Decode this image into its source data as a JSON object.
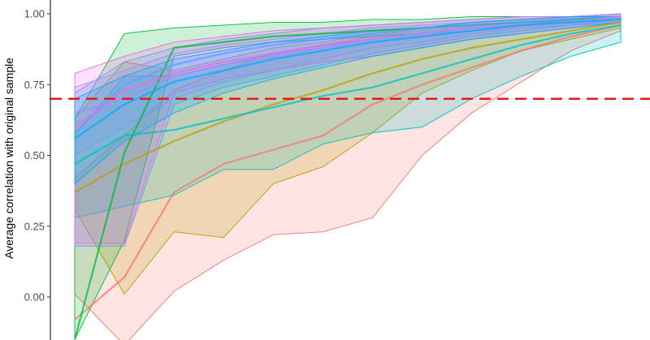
{
  "chart_data": {
    "type": "line",
    "xlabel": "",
    "ylabel": "Average correlation with original sample",
    "ylim": [
      -0.15,
      1.04
    ],
    "y_ticks": [
      {
        "value": 0.0,
        "label": "0.00"
      },
      {
        "value": 0.25,
        "label": "0.25"
      },
      {
        "value": 0.5,
        "label": "0.50"
      },
      {
        "value": 0.75,
        "label": "0.75"
      },
      {
        "value": 1.0,
        "label": "1.00"
      }
    ],
    "x": [
      1,
      2,
      3,
      4,
      5,
      6,
      7,
      8,
      9,
      10,
      11,
      12
    ],
    "xlim": [
      1,
      12
    ],
    "grid": false,
    "legend": "none",
    "reference_line": {
      "value": 0.7,
      "color": "#e41a1c",
      "style": "dashed"
    },
    "series": [
      {
        "color": "#F8766D",
        "values": [
          -0.08,
          0.07,
          0.37,
          0.47,
          0.52,
          0.57,
          0.68,
          0.75,
          0.81,
          0.87,
          0.92,
          0.96
        ],
        "lower": [
          0.01,
          -0.17,
          0.02,
          0.13,
          0.22,
          0.23,
          0.28,
          0.5,
          0.65,
          0.76,
          0.87,
          0.94
        ],
        "upper": [
          0.42,
          0.57,
          0.73,
          0.8,
          0.86,
          0.89,
          0.92,
          0.95,
          0.96,
          0.97,
          0.98,
          0.99
        ]
      },
      {
        "color": "#B79F00",
        "values": [
          0.37,
          0.47,
          0.55,
          0.62,
          0.68,
          0.73,
          0.79,
          0.84,
          0.88,
          0.91,
          0.94,
          0.97
        ],
        "lower": [
          0.31,
          0.01,
          0.23,
          0.21,
          0.4,
          0.46,
          0.58,
          0.72,
          0.8,
          0.87,
          0.91,
          0.95
        ],
        "upper": [
          0.63,
          0.83,
          0.8,
          0.84,
          0.88,
          0.9,
          0.93,
          0.95,
          0.97,
          0.98,
          0.99,
          0.99
        ]
      },
      {
        "color": "#00BA38",
        "values": [
          -0.15,
          0.51,
          0.88,
          0.9,
          0.92,
          0.93,
          0.94,
          0.95,
          0.96,
          0.97,
          0.98,
          0.99
        ],
        "lower": [
          -0.15,
          0.2,
          0.85,
          0.88,
          0.9,
          0.91,
          0.92,
          0.93,
          0.95,
          0.96,
          0.97,
          0.98
        ],
        "upper": [
          0.63,
          0.93,
          0.95,
          0.96,
          0.97,
          0.97,
          0.98,
          0.98,
          0.99,
          0.99,
          0.99,
          1.0
        ]
      },
      {
        "color": "#00BFC4",
        "values": [
          0.47,
          0.57,
          0.59,
          0.63,
          0.67,
          0.71,
          0.74,
          0.79,
          0.84,
          0.89,
          0.93,
          0.96
        ],
        "lower": [
          0.28,
          0.32,
          0.36,
          0.45,
          0.45,
          0.54,
          0.58,
          0.6,
          0.7,
          0.78,
          0.85,
          0.9
        ],
        "upper": [
          0.57,
          0.78,
          0.78,
          0.82,
          0.86,
          0.89,
          0.91,
          0.93,
          0.94,
          0.96,
          0.98,
          0.99
        ]
      },
      {
        "color": "#619CFF",
        "values": [
          0.58,
          0.75,
          0.82,
          0.86,
          0.89,
          0.91,
          0.93,
          0.95,
          0.96,
          0.97,
          0.98,
          0.99
        ],
        "lower": [
          0.18,
          0.18,
          0.68,
          0.74,
          0.78,
          0.82,
          0.86,
          0.89,
          0.92,
          0.94,
          0.96,
          0.97
        ],
        "upper": [
          0.72,
          0.83,
          0.88,
          0.91,
          0.93,
          0.95,
          0.96,
          0.97,
          0.98,
          0.99,
          0.99,
          1.0
        ]
      },
      {
        "color": "#F564E3",
        "values": [
          0.6,
          0.73,
          0.79,
          0.83,
          0.86,
          0.89,
          0.91,
          0.93,
          0.95,
          0.96,
          0.97,
          0.99
        ],
        "lower": [
          0.19,
          0.19,
          0.72,
          0.77,
          0.8,
          0.83,
          0.85,
          0.88,
          0.91,
          0.93,
          0.95,
          0.97
        ],
        "upper": [
          0.79,
          0.85,
          0.9,
          0.92,
          0.94,
          0.95,
          0.96,
          0.97,
          0.98,
          0.99,
          0.99,
          1.0
        ]
      },
      {
        "color": "#A58AFF",
        "values": [
          0.65,
          0.7,
          0.78,
          0.82,
          0.85,
          0.88,
          0.91,
          0.93,
          0.95,
          0.96,
          0.97,
          0.99
        ],
        "lower": [
          0.5,
          0.6,
          0.7,
          0.76,
          0.8,
          0.84,
          0.88,
          0.9,
          0.93,
          0.95,
          0.96,
          0.98
        ],
        "upper": [
          0.74,
          0.8,
          0.86,
          0.89,
          0.91,
          0.93,
          0.95,
          0.96,
          0.97,
          0.98,
          0.99,
          1.0
        ]
      },
      {
        "color": "#00A9FF",
        "values": [
          0.56,
          0.68,
          0.76,
          0.8,
          0.84,
          0.87,
          0.9,
          0.92,
          0.94,
          0.96,
          0.97,
          0.98
        ],
        "lower": [
          0.4,
          0.55,
          0.65,
          0.72,
          0.77,
          0.81,
          0.85,
          0.88,
          0.91,
          0.93,
          0.95,
          0.97
        ],
        "upper": [
          0.7,
          0.78,
          0.84,
          0.87,
          0.9,
          0.92,
          0.94,
          0.95,
          0.97,
          0.98,
          0.99,
          0.99
        ]
      }
    ]
  }
}
